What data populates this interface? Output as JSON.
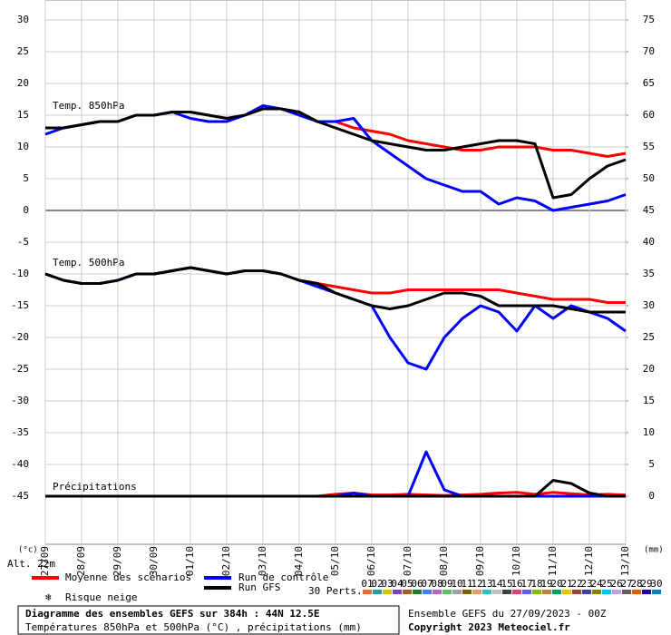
{
  "chart_data": {
    "type": "line",
    "title": "Diagramme des ensembles GEFS sur 384h : 44N 12.5E",
    "subtitle": "Températures 850hPa et 500hPa (°C) , précipitations (mm)",
    "run_info": "Ensemble GEFS du 27/09/2023 - 00Z",
    "copyright": "Copyright 2023 Meteociel.fr",
    "y_label": "(°c)",
    "y2_label": "(mm)",
    "altitude": "Alt. 22m",
    "label_850": "Temp. 850hPa",
    "label_500": "Temp. 500hPa",
    "label_precip": "Précipitations",
    "snow_label": "Risque neige",
    "perts_label": "30 Perts.",
    "x": [
      0,
      12,
      24,
      36,
      48,
      60,
      72,
      84,
      96,
      108,
      120,
      132,
      144,
      156,
      168,
      180,
      192,
      204,
      216,
      228,
      240,
      252,
      264,
      276,
      288,
      300,
      312,
      324,
      336,
      348,
      360,
      372,
      384
    ],
    "xlim": [
      0,
      384
    ],
    "xticks": [
      {
        "value": 0,
        "label": "27/09"
      },
      {
        "value": 24,
        "label": "28/09"
      },
      {
        "value": 48,
        "label": "29/09"
      },
      {
        "value": 72,
        "label": "30/09"
      },
      {
        "value": 96,
        "label": "01/10"
      },
      {
        "value": 120,
        "label": "02/10"
      },
      {
        "value": 144,
        "label": "03/10"
      },
      {
        "value": 168,
        "label": "04/10"
      },
      {
        "value": 192,
        "label": "05/10"
      },
      {
        "value": 216,
        "label": "06/10"
      },
      {
        "value": 240,
        "label": "07/10"
      },
      {
        "value": 264,
        "label": "08/10"
      },
      {
        "value": 288,
        "label": "09/10"
      },
      {
        "value": 312,
        "label": "10/10"
      },
      {
        "value": 336,
        "label": "11/10"
      },
      {
        "value": 360,
        "label": "12/10"
      },
      {
        "value": 384,
        "label": "13/10"
      }
    ],
    "ylim": [
      -50,
      30
    ],
    "yticks": [
      30,
      25,
      20,
      15,
      10,
      5,
      0,
      -5,
      -10,
      -15,
      -20,
      -25,
      -30,
      -35,
      -40,
      -45
    ],
    "y2lim": [
      -5,
      75
    ],
    "y2ticks": [
      75,
      70,
      65,
      60,
      55,
      50,
      45,
      40,
      35,
      30,
      25,
      20,
      15,
      10,
      5,
      0
    ],
    "grid": true,
    "series": [
      {
        "name": "Moyenne des scénarios",
        "color": "#ff0000",
        "temp850": [
          13,
          13,
          13.5,
          14,
          14,
          15,
          15,
          15.5,
          15.5,
          15,
          14.5,
          15,
          16,
          16,
          15.5,
          14,
          14,
          13,
          12.5,
          12,
          11,
          10.5,
          10,
          9.5,
          9.5,
          10,
          10,
          10,
          9.5,
          9.5,
          9,
          8.5,
          9
        ],
        "temp500": [
          -10,
          -11,
          -11.5,
          -11.5,
          -11,
          -10,
          -10,
          -9.5,
          -9,
          -9.5,
          -10,
          -9.5,
          -9.5,
          -10,
          -11,
          -11.5,
          -12,
          -12.5,
          -13,
          -13,
          -12.5,
          -12.5,
          -12.5,
          -12.5,
          -12.5,
          -12.5,
          -13,
          -13.5,
          -14,
          -14,
          -14,
          -14.5,
          -14.5
        ],
        "precip": [
          0,
          0,
          0,
          0,
          0,
          0,
          0,
          0,
          0,
          0,
          0,
          0,
          0,
          0,
          0,
          0,
          0.3,
          0.5,
          0.2,
          0.2,
          0.3,
          0.2,
          0.1,
          0.2,
          0.3,
          0.5,
          0.6,
          0.3,
          0.6,
          0.4,
          0.2,
          0.3,
          0.2
        ]
      },
      {
        "name": "Run de contrôle",
        "color": "#0000ff",
        "temp850": [
          12,
          13,
          13.5,
          14,
          14,
          15,
          15,
          15.5,
          14.5,
          14,
          14,
          15,
          16.5,
          16,
          15,
          14,
          14,
          14.5,
          11,
          9,
          7,
          5,
          4,
          3,
          3,
          1,
          2,
          1.5,
          0,
          0.5,
          1,
          1.5,
          2.5
        ],
        "temp500": [
          -10,
          -11,
          -11.5,
          -11.5,
          -11,
          -10,
          -10,
          -9.5,
          -9,
          -9.5,
          -10,
          -9.5,
          -9.5,
          -10,
          -11,
          -12,
          -13,
          -14,
          -15,
          -20,
          -24,
          -25,
          -20,
          -17,
          -15,
          -16,
          -19,
          -15,
          -17,
          -15,
          -16,
          -17,
          -19
        ],
        "precip": [
          0,
          0,
          0,
          0,
          0,
          0,
          0,
          0,
          0,
          0,
          0,
          0,
          0,
          0,
          0,
          0,
          0,
          0.5,
          0,
          0,
          0,
          7,
          1,
          0,
          0,
          0,
          0,
          0,
          0,
          0,
          0,
          0,
          0
        ]
      },
      {
        "name": "Run GFS",
        "color": "#000000",
        "temp850": [
          13,
          13,
          13.5,
          14,
          14,
          15,
          15,
          15.5,
          15.5,
          15,
          14.5,
          15,
          16,
          16,
          15.5,
          14,
          13,
          12,
          11,
          10.5,
          10,
          9.5,
          9.5,
          10,
          10.5,
          11,
          11,
          10.5,
          2,
          2.5,
          5,
          7,
          8
        ],
        "temp500": [
          -10,
          -11,
          -11.5,
          -11.5,
          -11,
          -10,
          -10,
          -9.5,
          -9,
          -9.5,
          -10,
          -9.5,
          -9.5,
          -10,
          -11,
          -11.5,
          -13,
          -14,
          -15,
          -15.5,
          -15,
          -14,
          -13,
          -13,
          -13.5,
          -15,
          -15,
          -15,
          -15,
          -15.5,
          -16,
          -16,
          -16
        ],
        "precip": [
          0,
          0,
          0,
          0,
          0,
          0,
          0,
          0,
          0,
          0,
          0,
          0,
          0,
          0,
          0,
          0,
          0,
          0,
          0,
          0,
          0,
          0,
          0,
          0,
          0,
          0,
          0,
          0,
          2.5,
          2,
          0.5,
          0,
          0
        ]
      }
    ],
    "perturbations": [
      {
        "label": "01",
        "color": "#e07030"
      },
      {
        "label": "02",
        "color": "#20a0a0"
      },
      {
        "label": "03",
        "color": "#d0c020"
      },
      {
        "label": "04",
        "color": "#8040c0"
      },
      {
        "label": "05",
        "color": "#a06020"
      },
      {
        "label": "06",
        "color": "#208020"
      },
      {
        "label": "07",
        "color": "#4080ff"
      },
      {
        "label": "08",
        "color": "#c060c0"
      },
      {
        "label": "09",
        "color": "#60c060"
      },
      {
        "label": "10",
        "color": "#a0a0a0"
      },
      {
        "label": "11",
        "color": "#806000"
      },
      {
        "label": "12",
        "color": "#e0a060"
      },
      {
        "label": "13",
        "color": "#30c0c0"
      },
      {
        "label": "14",
        "color": "#c0c0c0"
      },
      {
        "label": "15",
        "color": "#404040"
      },
      {
        "label": "16",
        "color": "#e04080"
      },
      {
        "label": "17",
        "color": "#6060e0"
      },
      {
        "label": "18",
        "color": "#80c000"
      },
      {
        "label": "19",
        "color": "#c08040"
      },
      {
        "label": "20",
        "color": "#00a060"
      },
      {
        "label": "21",
        "color": "#f0c000"
      },
      {
        "label": "22",
        "color": "#a04040"
      },
      {
        "label": "23",
        "color": "#4040a0"
      },
      {
        "label": "24",
        "color": "#808000"
      },
      {
        "label": "25",
        "color": "#00c0ff"
      },
      {
        "label": "26",
        "color": "#c0a0e0"
      },
      {
        "label": "27",
        "color": "#606060"
      },
      {
        "label": "28",
        "color": "#e06000"
      },
      {
        "label": "29",
        "color": "#2000a0"
      },
      {
        "label": "30",
        "color": "#0080c0"
      }
    ]
  }
}
